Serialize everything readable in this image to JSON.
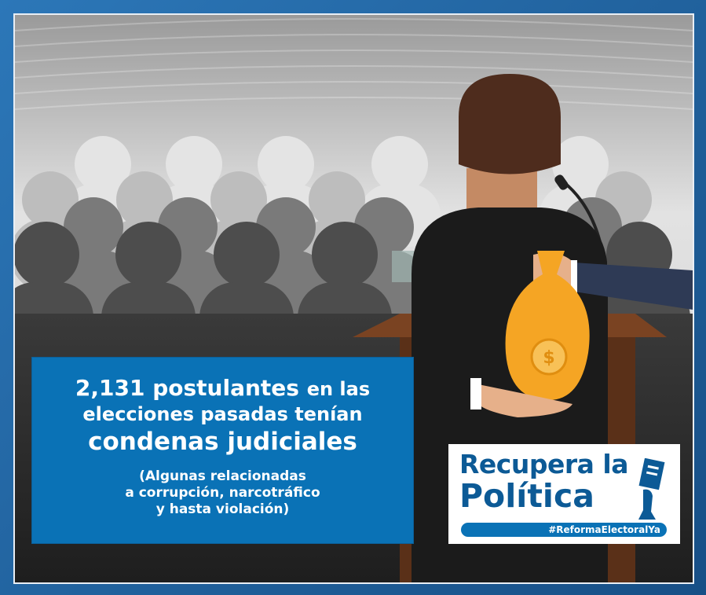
{
  "headline": {
    "number": "2,131",
    "line1_bold": "postulantes",
    "line1_rest": "en las",
    "line2": "elecciones pasadas tenían",
    "line3": "condenas judiciales"
  },
  "subtext": {
    "line1": "(Algunas relacionadas",
    "line2": "a corrupción, narcotráfico",
    "line3": "y hasta violación)"
  },
  "logo": {
    "line1": "Recupera la",
    "line2": "Política",
    "hashtag": "#ReformaElectoralYa"
  },
  "illustration": {
    "money_bag_symbol": "$",
    "colors": {
      "brand_blue": "#0a72b6",
      "logo_blue": "#0c5a96",
      "bag_orange": "#f5a524",
      "podium_brown": "#6b3a1c"
    }
  }
}
